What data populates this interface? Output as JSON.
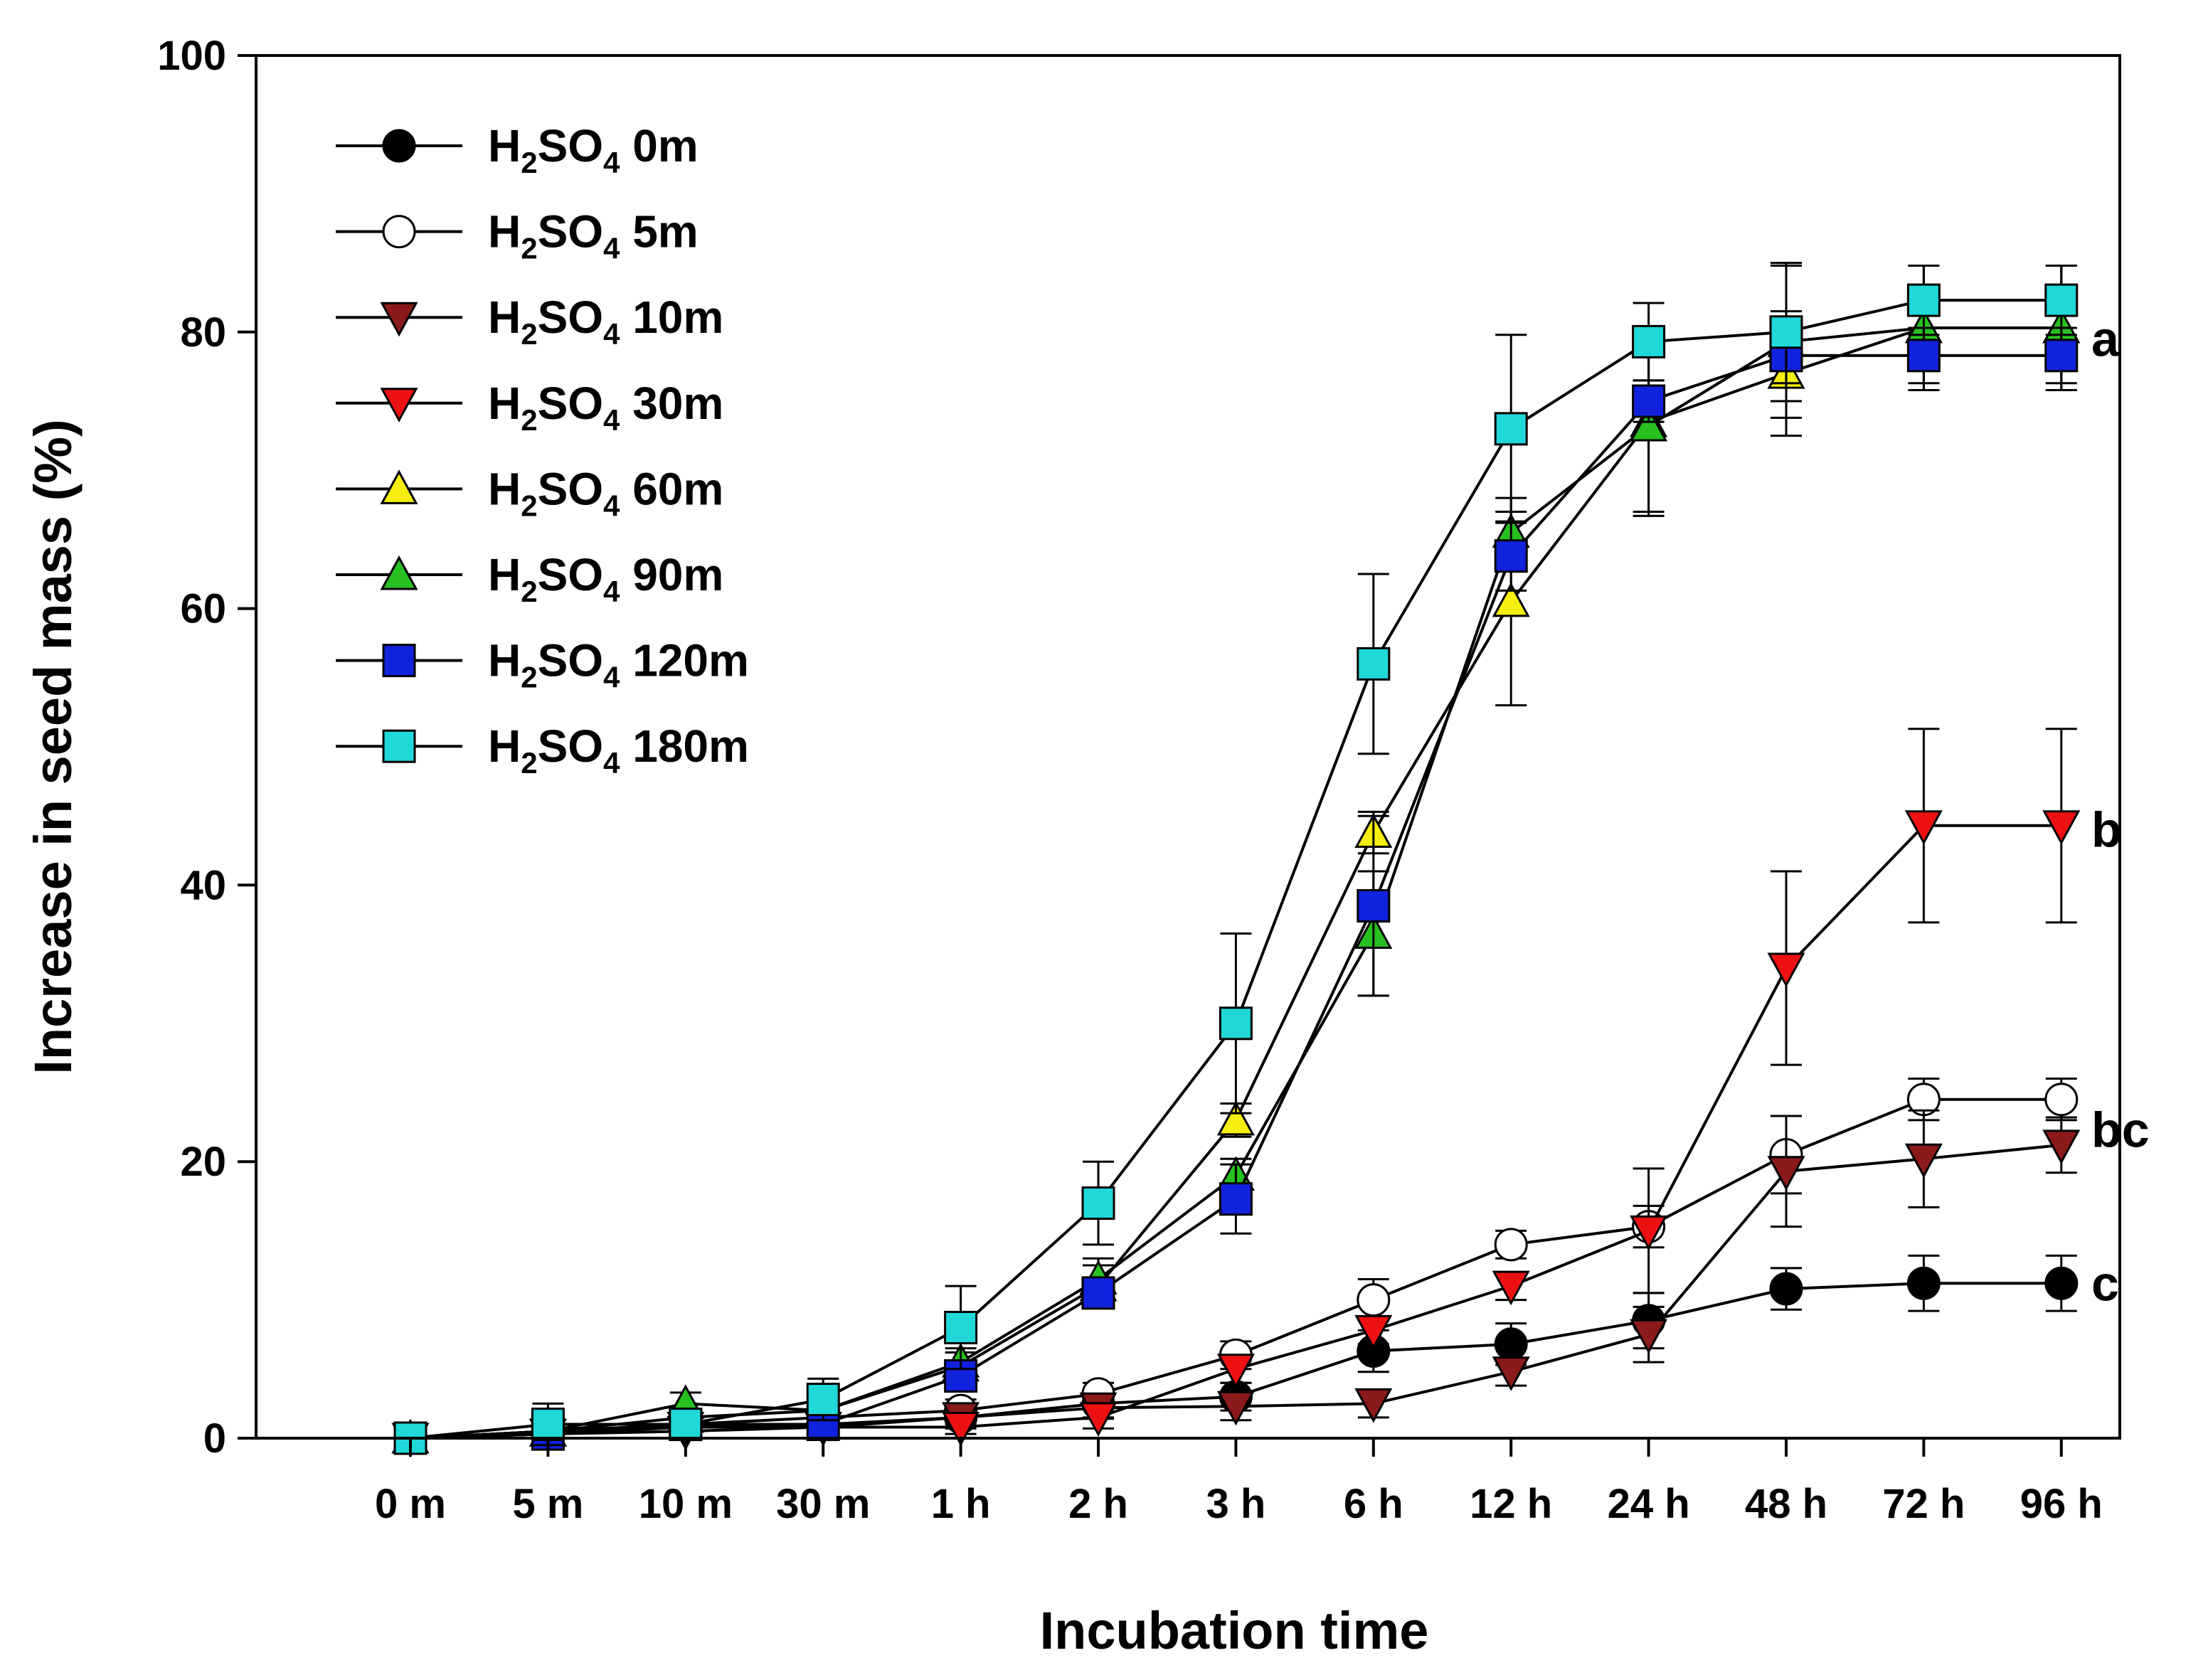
{
  "chart_data": {
    "type": "line",
    "title": "",
    "xlabel": "Incubation time",
    "ylabel": "Increase in seed mass (%)",
    "ylim": [
      0,
      100
    ],
    "yticks": [
      0,
      20,
      40,
      60,
      80,
      100
    ],
    "categories": [
      "0 m",
      "5 m",
      "10 m",
      "30 m",
      "1 h",
      "2 h",
      "3 h",
      "6 h",
      "12 h",
      "24 h",
      "48 h",
      "72 h",
      "96 h"
    ],
    "legend_position": "top-left",
    "grid": false,
    "series": [
      {
        "name": "H2SO4 0m",
        "label_parts": [
          "H",
          "2",
          "SO",
          "4",
          " 0m"
        ],
        "marker": "circle",
        "fill": "#000000",
        "values": [
          0,
          0.3,
          1.0,
          1.0,
          1.5,
          2.5,
          3.0,
          6.3,
          6.8,
          8.5,
          10.8,
          11.2,
          11.2
        ],
        "errors": [
          0,
          0.3,
          0.5,
          0.8,
          0.8,
          1.0,
          1.0,
          1.5,
          1.5,
          2.0,
          1.5,
          2.0,
          2.0
        ]
      },
      {
        "name": "H2SO4 5m",
        "label_parts": [
          "H",
          "2",
          "SO",
          "4",
          " 5m"
        ],
        "marker": "circle",
        "fill": "#ffffff",
        "values": [
          0,
          0.5,
          1.0,
          1.5,
          2.0,
          3.2,
          6.0,
          10.0,
          14.0,
          15.3,
          20.5,
          24.5,
          24.5
        ],
        "errors": [
          0,
          0.3,
          0.5,
          0.8,
          0.8,
          0.8,
          1.0,
          1.5,
          1.0,
          1.5,
          2.8,
          1.5,
          1.5
        ]
      },
      {
        "name": "H2SO4 10m",
        "label_parts": [
          "H",
          "2",
          "SO",
          "4",
          " 10m"
        ],
        "marker": "triangle-down",
        "fill": "#8b1a1a",
        "values": [
          0,
          0.3,
          0.5,
          0.8,
          1.5,
          2.2,
          2.3,
          2.5,
          4.8,
          7.5,
          19.3,
          20.2,
          21.2
        ],
        "errors": [
          0,
          0.3,
          0.5,
          0.5,
          0.5,
          0.8,
          1.0,
          1.0,
          1.0,
          2.0,
          4.0,
          3.5,
          2.0
        ]
      },
      {
        "name": "H2SO4 30m",
        "label_parts": [
          "H",
          "2",
          "SO",
          "4",
          " 30m"
        ],
        "marker": "triangle-down",
        "fill": "#ee1111",
        "values": [
          0,
          0.3,
          0.8,
          0.8,
          0.8,
          1.5,
          5.0,
          7.8,
          11.0,
          15.0,
          34.0,
          44.3,
          44.3
        ],
        "errors": [
          0,
          0.3,
          0.5,
          0.5,
          0.5,
          0.8,
          1.0,
          1.0,
          1.0,
          4.5,
          7.0,
          7.0,
          7.0
        ]
      },
      {
        "name": "H2SO4 60m",
        "label_parts": [
          "H",
          "2",
          "SO",
          "4",
          " 60m"
        ],
        "marker": "triangle-up",
        "fill": "#f5ee10",
        "values": [
          0,
          0.5,
          1.5,
          2.0,
          5.2,
          11.0,
          23.0,
          43.8,
          60.5,
          73.5,
          77.0,
          80.3,
          80.3
        ],
        "errors": [
          0,
          0.5,
          0.5,
          1.0,
          1.0,
          1.5,
          1.2,
          1.5,
          7.5,
          6.5,
          4.5,
          4.5,
          4.5
        ]
      },
      {
        "name": "H2SO4 90m",
        "label_parts": [
          "H",
          "2",
          "SO",
          "4",
          " 90m"
        ],
        "marker": "triangle-up",
        "fill": "#28c020",
        "values": [
          0,
          0.5,
          2.5,
          2.0,
          5.5,
          11.5,
          19.0,
          36.5,
          65.5,
          73.2,
          79.3,
          80.3,
          80.3
        ],
        "errors": [
          0,
          0.5,
          0.8,
          1.0,
          1.0,
          1.5,
          1.2,
          4.5,
          1.5,
          6.5,
          5.5,
          4.5,
          4.5
        ]
      },
      {
        "name": "H2SO4 120m",
        "label_parts": [
          "H",
          "2",
          "SO",
          "4",
          " 120m"
        ],
        "marker": "square",
        "fill": "#1122dd",
        "values": [
          0,
          0.3,
          1.0,
          1.0,
          4.5,
          10.5,
          17.3,
          38.5,
          63.8,
          75.0,
          78.3,
          78.3,
          78.3
        ],
        "errors": [
          0,
          0.3,
          0.5,
          0.8,
          1.0,
          1.0,
          2.5,
          6.5,
          2.5,
          1.5,
          2.0,
          2.0,
          2.0
        ]
      },
      {
        "name": "H2SO4 180m",
        "label_parts": [
          "H",
          "2",
          "SO",
          "4",
          " 180m"
        ],
        "marker": "square",
        "fill": "#20d8d8",
        "values": [
          0,
          1.0,
          1.0,
          2.8,
          8.0,
          17.0,
          30.0,
          56.0,
          73.0,
          79.3,
          80.0,
          82.3,
          82.3
        ],
        "errors": [
          0,
          1.5,
          1.0,
          1.5,
          3.0,
          3.0,
          6.5,
          6.5,
          6.8,
          2.8,
          5.0,
          2.5,
          2.5
        ]
      }
    ],
    "annotations": [
      {
        "text": "a",
        "y": 79.5
      },
      {
        "text": "b",
        "y": 44.0
      },
      {
        "text": "bc",
        "y": 22.3
      },
      {
        "text": "c",
        "y": 11.2
      }
    ]
  }
}
